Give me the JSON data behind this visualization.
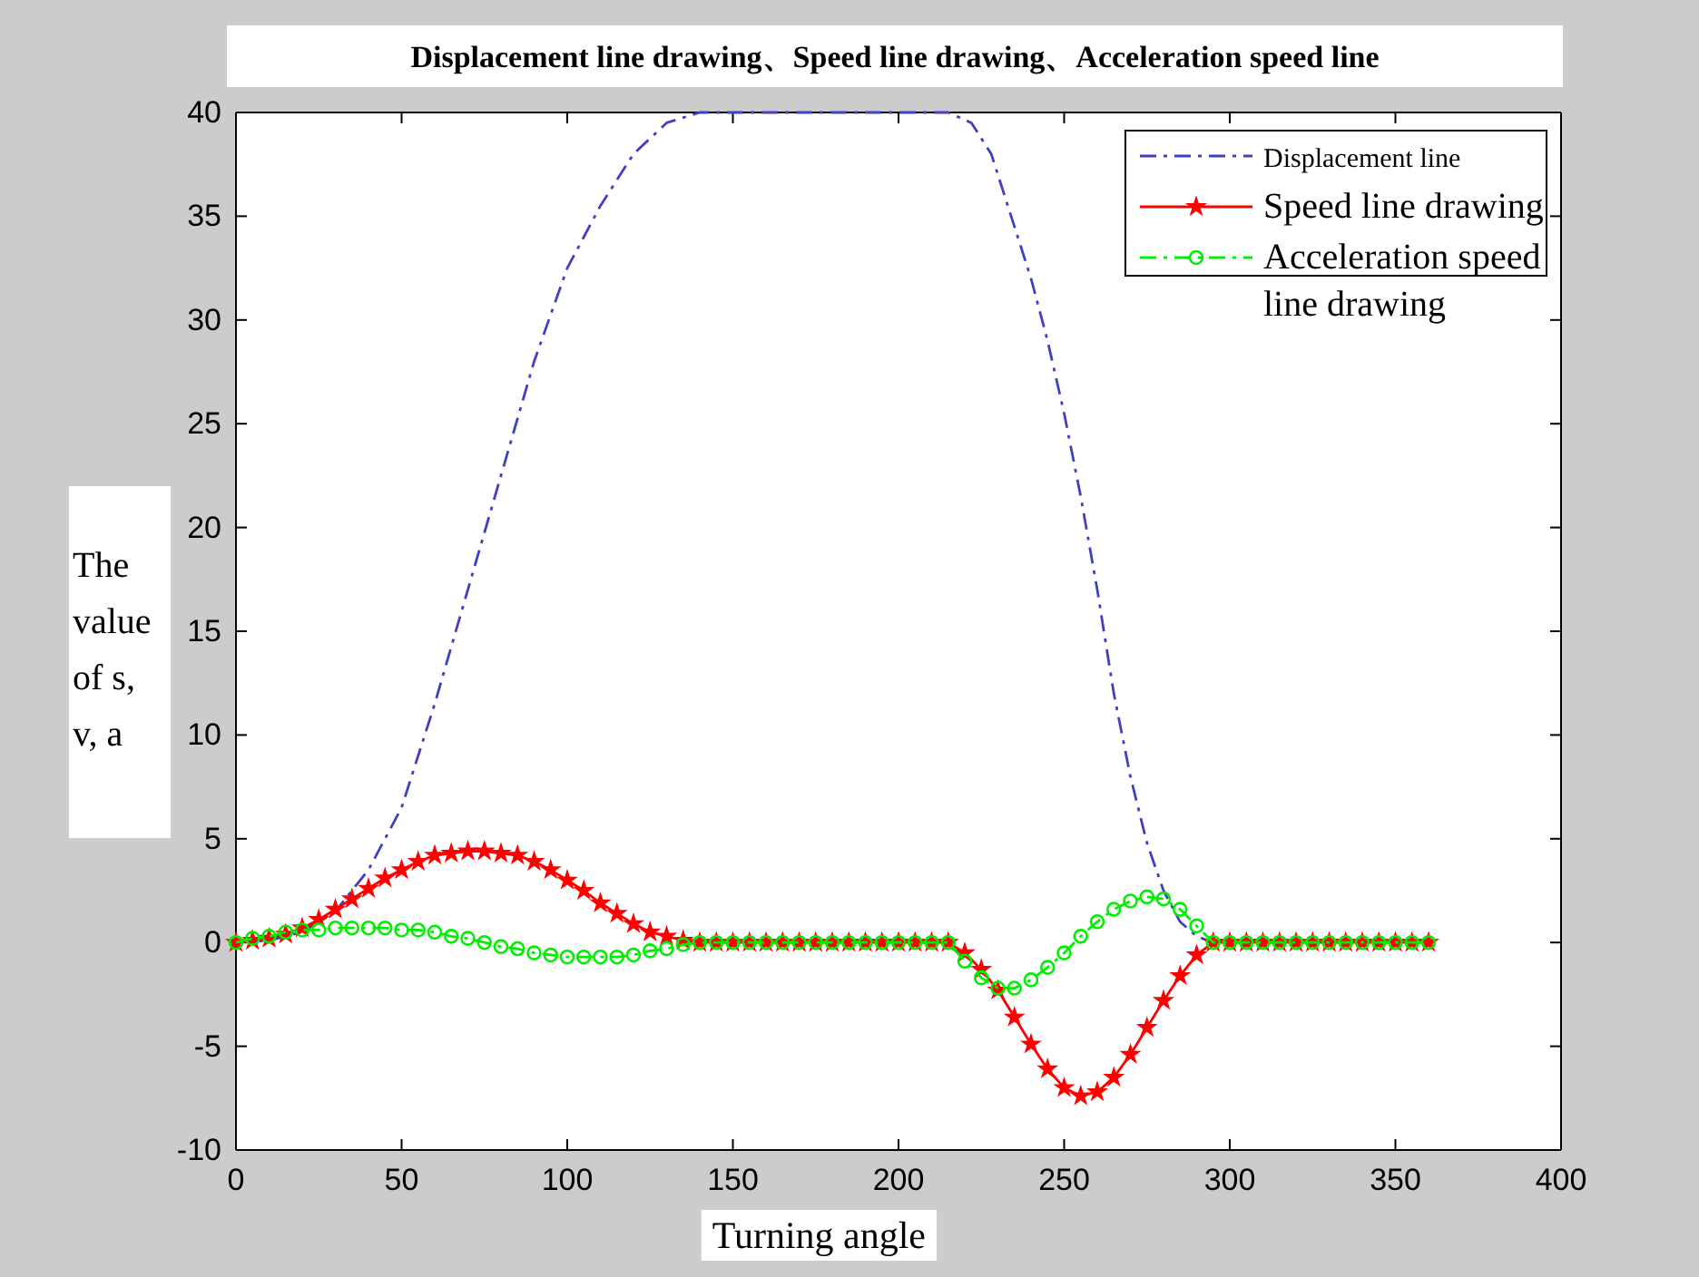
{
  "chart_data": {
    "type": "line",
    "title": "Displacement line drawing、Speed line drawing、Acceleration speed line",
    "xlabel": "Turning angle",
    "ylabel": "The value of s, v, a",
    "xlim": [
      0,
      400
    ],
    "ylim": [
      -10,
      40
    ],
    "xticks": [
      0,
      50,
      100,
      150,
      200,
      250,
      300,
      350,
      400
    ],
    "yticks": [
      -10,
      -5,
      0,
      5,
      10,
      15,
      20,
      25,
      30,
      35,
      40
    ],
    "legend": "top right",
    "grid": false,
    "series": [
      {
        "name": "Displacement line",
        "color": "#4040c0",
        "line_style": "dashed",
        "marker": "none",
        "x": [
          0,
          10,
          20,
          30,
          40,
          50,
          60,
          70,
          80,
          90,
          100,
          110,
          120,
          130,
          140,
          150,
          160,
          170,
          180,
          190,
          200,
          210,
          215,
          222,
          228,
          235,
          240,
          245,
          250,
          255,
          260,
          265,
          270,
          275,
          280,
          285,
          290,
          295,
          300
        ],
        "values": [
          0,
          0.1,
          0.5,
          1.5,
          3.5,
          6.5,
          11.5,
          17,
          22.5,
          28,
          32.5,
          35.5,
          38,
          39.5,
          40,
          40,
          40,
          40,
          40,
          40,
          40,
          40,
          40,
          39.5,
          38,
          34.5,
          32,
          29,
          25.5,
          21.5,
          17,
          12,
          8,
          4.8,
          2.5,
          1,
          0.3,
          0,
          0
        ]
      },
      {
        "name": "Speed line drawing",
        "color": "#ff0000",
        "line_style": "solid",
        "marker": "star",
        "x": [
          0,
          5,
          10,
          15,
          20,
          25,
          30,
          35,
          40,
          45,
          50,
          55,
          60,
          65,
          70,
          75,
          80,
          85,
          90,
          95,
          100,
          105,
          110,
          115,
          120,
          125,
          130,
          135,
          140,
          145,
          150,
          155,
          160,
          165,
          170,
          175,
          180,
          185,
          190,
          195,
          200,
          205,
          210,
          215,
          220,
          225,
          230,
          235,
          240,
          245,
          250,
          255,
          260,
          265,
          270,
          275,
          280,
          285,
          290,
          295,
          300,
          305,
          310,
          315,
          320,
          325,
          330,
          335,
          340,
          345,
          350,
          355,
          360
        ],
        "values": [
          0,
          0.1,
          0.2,
          0.4,
          0.7,
          1.1,
          1.6,
          2.1,
          2.6,
          3.1,
          3.5,
          3.9,
          4.2,
          4.3,
          4.4,
          4.4,
          4.3,
          4.2,
          3.9,
          3.5,
          3,
          2.5,
          1.9,
          1.4,
          0.9,
          0.5,
          0.3,
          0.1,
          0,
          0,
          0,
          0,
          0,
          0,
          0,
          0,
          0,
          0,
          0,
          0,
          0,
          0,
          0,
          0,
          -0.5,
          -1.3,
          -2.3,
          -3.6,
          -4.9,
          -6.1,
          -7,
          -7.4,
          -7.2,
          -6.5,
          -5.4,
          -4.1,
          -2.8,
          -1.6,
          -0.6,
          0,
          0,
          0,
          0,
          0,
          0,
          0,
          0,
          0,
          0,
          0,
          0,
          0,
          0
        ]
      },
      {
        "name": "Acceleration speed line drawing",
        "color": "#00ee00",
        "line_style": "dashed",
        "marker": "circle",
        "x": [
          0,
          5,
          10,
          15,
          20,
          25,
          30,
          35,
          40,
          45,
          50,
          55,
          60,
          65,
          70,
          75,
          80,
          85,
          90,
          95,
          100,
          105,
          110,
          115,
          120,
          125,
          130,
          135,
          140,
          145,
          150,
          155,
          160,
          165,
          170,
          175,
          180,
          185,
          190,
          195,
          200,
          205,
          210,
          215,
          220,
          225,
          230,
          235,
          240,
          245,
          250,
          255,
          260,
          265,
          270,
          275,
          280,
          285,
          290,
          295,
          300,
          305,
          310,
          315,
          320,
          325,
          330,
          335,
          340,
          345,
          350,
          355,
          360
        ],
        "values": [
          0,
          0.2,
          0.3,
          0.5,
          0.6,
          0.6,
          0.7,
          0.7,
          0.7,
          0.7,
          0.6,
          0.6,
          0.5,
          0.3,
          0.2,
          0,
          -0.2,
          -0.3,
          -0.5,
          -0.6,
          -0.7,
          -0.7,
          -0.7,
          -0.7,
          -0.6,
          -0.4,
          -0.3,
          -0.1,
          0,
          0,
          0,
          0,
          0,
          0,
          0,
          0,
          0,
          0,
          0,
          0,
          0,
          0,
          0,
          0,
          -0.9,
          -1.7,
          -2.2,
          -2.2,
          -1.8,
          -1.2,
          -0.5,
          0.3,
          1,
          1.6,
          2,
          2.2,
          2.1,
          1.6,
          0.8,
          0,
          0,
          0,
          0,
          0,
          0,
          0,
          0,
          0,
          0,
          0,
          0,
          0,
          0
        ]
      }
    ]
  }
}
